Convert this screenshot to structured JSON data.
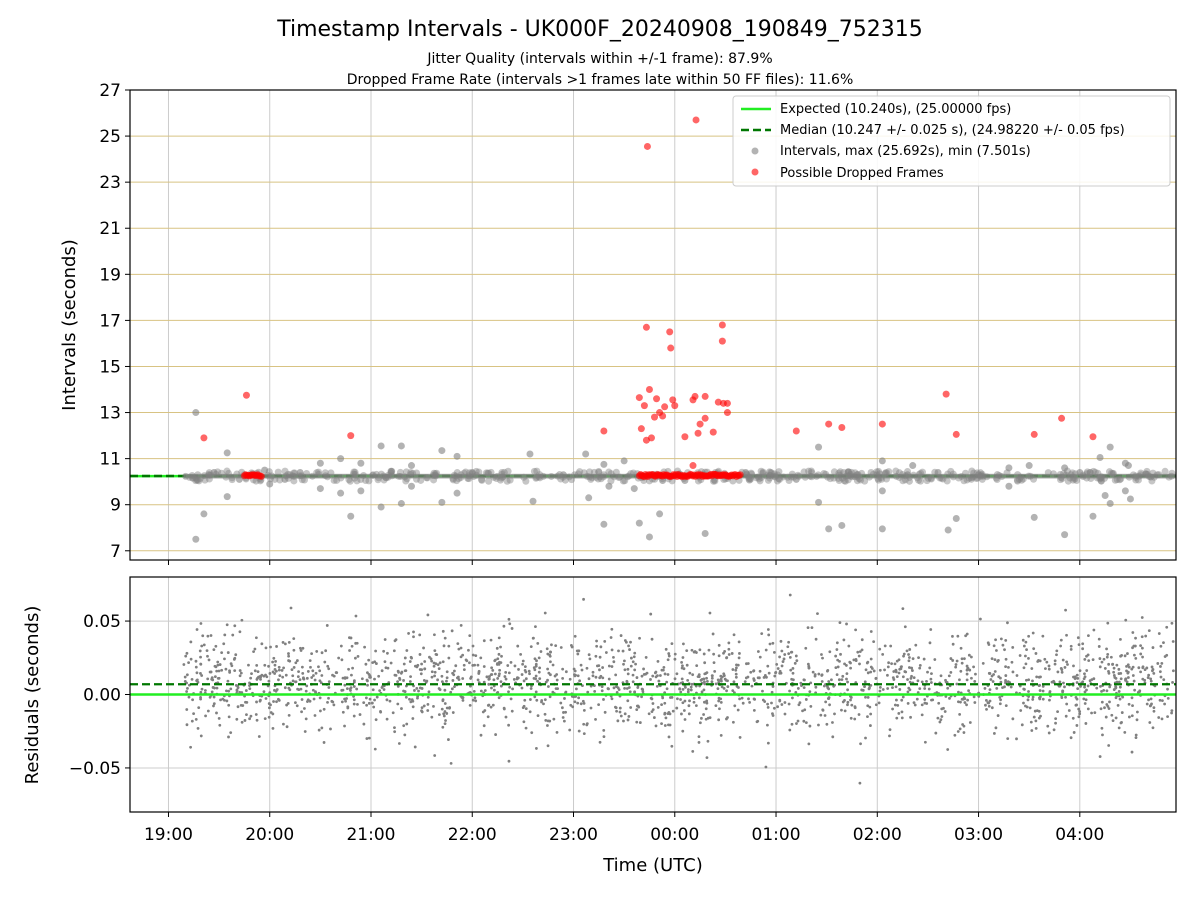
{
  "chart_data": [
    {
      "type": "scatter",
      "panel": "intervals",
      "title": "Timestamp Intervals - UK000F_20240908_190849_752315",
      "subtitle_1": "Jitter Quality (intervals within +/-1 frame): 87.9%",
      "subtitle_2": "Dropped Frame Rate (intervals >1 frames late within 50 FF files): 11.6%",
      "ylabel": "Intervals (seconds)",
      "ylim": [
        6.6,
        27.0
      ],
      "xlim_hours": [
        18.62,
        28.95
      ],
      "y_ticks": [
        "7",
        "9",
        "11",
        "13",
        "15",
        "17",
        "19",
        "21",
        "23",
        "25",
        "27"
      ],
      "y_tick_values": [
        7,
        9,
        11,
        13,
        15,
        17,
        19,
        21,
        23,
        25,
        27
      ],
      "grid": "horizontal goldenrod gridlines at odd integers, vertical grey gridlines at each hour",
      "legend_position": "upper right",
      "expected_interval": 10.24,
      "median_interval": 10.247,
      "interval_band": [
        10.14,
        10.34
      ],
      "legend": {
        "expected": "Expected (10.240s), (25.00000 fps)",
        "median": "Median (10.247 +/- 0.025 s), (24.98220 +/- 0.05 fps)",
        "intervals": "Intervals, max (25.692s), min (7.501s)",
        "dropped": "Possible Dropped Frames"
      },
      "series": [
        {
          "name": "Intervals, max (25.692s), min (7.501s)",
          "color": "#808080",
          "points": [
            [
              19.27,
              13.0
            ],
            [
              19.27,
              7.5
            ],
            [
              19.35,
              8.6
            ],
            [
              19.45,
              10.4
            ],
            [
              19.58,
              11.25
            ],
            [
              19.58,
              9.35
            ],
            [
              19.7,
              10.1
            ],
            [
              19.95,
              10.5
            ],
            [
              20.0,
              9.9
            ],
            [
              20.15,
              10.1
            ],
            [
              20.3,
              10.4
            ],
            [
              20.5,
              10.8
            ],
            [
              20.5,
              9.7
            ],
            [
              20.7,
              11.0
            ],
            [
              20.7,
              9.5
            ],
            [
              20.8,
              8.5
            ],
            [
              20.9,
              10.8
            ],
            [
              20.9,
              9.6
            ],
            [
              21.1,
              11.55
            ],
            [
              21.1,
              8.9
            ],
            [
              21.3,
              11.55
            ],
            [
              21.3,
              9.05
            ],
            [
              21.4,
              10.7
            ],
            [
              21.4,
              9.8
            ],
            [
              21.7,
              11.35
            ],
            [
              21.7,
              9.1
            ],
            [
              21.85,
              11.1
            ],
            [
              21.85,
              9.5
            ],
            [
              22.0,
              10.4
            ],
            [
              22.3,
              10.2
            ],
            [
              22.57,
              11.2
            ],
            [
              22.6,
              9.15
            ],
            [
              22.9,
              10.3
            ],
            [
              23.12,
              11.2
            ],
            [
              23.15,
              9.3
            ],
            [
              23.3,
              10.75
            ],
            [
              23.3,
              8.15
            ],
            [
              23.5,
              10.9
            ],
            [
              23.35,
              9.8
            ],
            [
              23.6,
              9.7
            ],
            [
              23.65,
              8.2
            ],
            [
              23.75,
              7.6
            ],
            [
              23.85,
              8.6
            ],
            [
              23.88,
              10.05
            ],
            [
              24.3,
              7.75
            ],
            [
              24.1,
              10.05
            ],
            [
              24.5,
              10.3
            ],
            [
              24.7,
              10.4
            ],
            [
              25.2,
              10.1
            ],
            [
              25.42,
              11.5
            ],
            [
              25.42,
              9.1
            ],
            [
              25.52,
              7.95
            ],
            [
              25.65,
              8.1
            ],
            [
              25.8,
              10.3
            ],
            [
              26.05,
              10.9
            ],
            [
              26.05,
              9.6
            ],
            [
              26.05,
              7.95
            ],
            [
              26.3,
              10.3
            ],
            [
              26.35,
              10.7
            ],
            [
              26.6,
              10.4
            ],
            [
              26.7,
              7.9
            ],
            [
              26.78,
              8.4
            ],
            [
              27.0,
              10.3
            ],
            [
              27.3,
              10.6
            ],
            [
              27.3,
              9.8
            ],
            [
              27.5,
              10.7
            ],
            [
              27.55,
              8.45
            ],
            [
              27.85,
              10.6
            ],
            [
              27.85,
              7.7
            ],
            [
              28.0,
              10.4
            ],
            [
              28.13,
              8.5
            ],
            [
              28.2,
              11.05
            ],
            [
              28.25,
              9.4
            ],
            [
              28.3,
              11.5
            ],
            [
              28.3,
              9.05
            ],
            [
              28.45,
              10.8
            ],
            [
              28.45,
              9.6
            ],
            [
              28.5,
              9.25
            ],
            [
              28.48,
              10.7
            ],
            [
              28.7,
              10.2
            ]
          ]
        },
        {
          "name": "Possible Dropped Frames",
          "color": "#ff0000",
          "points": [
            [
              19.35,
              11.9
            ],
            [
              19.77,
              13.75
            ],
            [
              20.8,
              12.0
            ],
            [
              23.3,
              12.2
            ],
            [
              23.65,
              13.65
            ],
            [
              23.67,
              12.3
            ],
            [
              23.7,
              13.3
            ],
            [
              23.72,
              16.7
            ],
            [
              23.73,
              24.55
            ],
            [
              23.75,
              14.0
            ],
            [
              23.72,
              11.8
            ],
            [
              23.77,
              11.9
            ],
            [
              23.8,
              12.8
            ],
            [
              23.82,
              13.6
            ],
            [
              23.85,
              13.0
            ],
            [
              23.88,
              12.85
            ],
            [
              23.9,
              13.25
            ],
            [
              23.95,
              16.5
            ],
            [
              23.96,
              15.8
            ],
            [
              23.98,
              13.55
            ],
            [
              24.0,
              13.3
            ],
            [
              24.1,
              11.95
            ],
            [
              24.18,
              13.55
            ],
            [
              24.2,
              13.7
            ],
            [
              24.21,
              25.7
            ],
            [
              24.23,
              12.1
            ],
            [
              24.25,
              12.5
            ],
            [
              24.3,
              12.75
            ],
            [
              24.3,
              13.7
            ],
            [
              24.38,
              12.15
            ],
            [
              24.43,
              13.45
            ],
            [
              24.47,
              16.8
            ],
            [
              24.47,
              16.1
            ],
            [
              24.48,
              13.4
            ],
            [
              24.52,
              13.4
            ],
            [
              24.52,
              13.0
            ],
            [
              24.18,
              10.7
            ],
            [
              25.2,
              12.2
            ],
            [
              25.52,
              12.5
            ],
            [
              25.65,
              12.35
            ],
            [
              26.05,
              12.5
            ],
            [
              26.68,
              13.8
            ],
            [
              26.78,
              12.05
            ],
            [
              27.55,
              12.05
            ],
            [
              27.82,
              12.75
            ],
            [
              28.13,
              11.95
            ]
          ],
          "clusters": [
            [
              19.75,
              19.92
            ],
            [
              23.65,
              24.65
            ]
          ],
          "cluster_level": 10.27
        }
      ]
    },
    {
      "type": "scatter",
      "panel": "residuals",
      "xlabel": "Time (UTC)",
      "ylabel": "Residuals (seconds)",
      "ylim": [
        -0.08,
        0.08
      ],
      "y_ticks": [
        "−0.05",
        "0.00",
        "0.05"
      ],
      "y_tick_values": [
        -0.05,
        0.0,
        0.05
      ],
      "x_ticks": [
        "19:00",
        "20:00",
        "21:00",
        "22:00",
        "23:00",
        "00:00",
        "01:00",
        "02:00",
        "03:00",
        "04:00"
      ],
      "x_tick_hours": [
        19,
        20,
        21,
        22,
        23,
        24,
        25,
        26,
        27,
        28
      ],
      "expected_residual": 0.0,
      "median_residual": 0.007,
      "residual_mean": 0.008,
      "residual_spread": 0.017,
      "residual_range_hours": [
        19.15,
        28.95
      ],
      "residual_count": 2100,
      "series_color": "#808080"
    }
  ],
  "colors": {
    "expected_line": "#22ee22",
    "median_line": "#007700",
    "interval_points": "#808080",
    "dropped_points": "#ff0000",
    "hgrid_top": "#d8c383",
    "vgrid": "#cccccc"
  }
}
